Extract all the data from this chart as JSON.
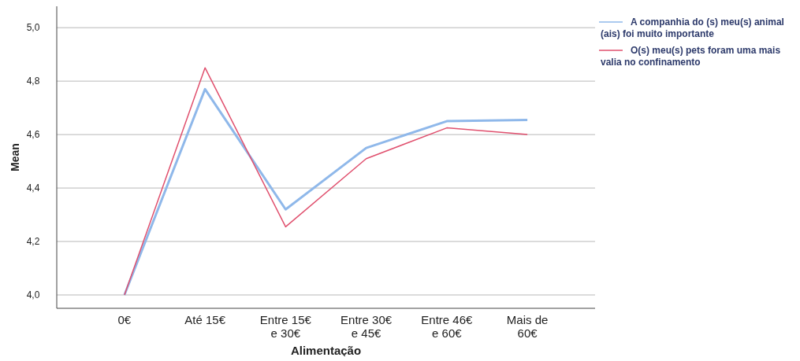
{
  "chart_data": {
    "type": "line",
    "xlabel": "Alimentação",
    "ylabel": "Mean",
    "categories": [
      "0€",
      "Até 15€",
      "Entre 15€ e 30€",
      "Entre 30€ e 45€",
      "Entre 46€ e 60€",
      "Mais de 60€"
    ],
    "series": [
      {
        "name": "A companhia do (s) meu(s) animal (ais) foi muito importante",
        "color": "#8fb8ea",
        "values": [
          4.0,
          4.77,
          4.32,
          4.55,
          4.65,
          4.655
        ]
      },
      {
        "name": "O(s) meu(s) pets foram uma mais valia no confinamento",
        "color": "#e0506e",
        "values": [
          4.0,
          4.85,
          4.255,
          4.51,
          4.625,
          4.6
        ]
      }
    ],
    "ylim": [
      3.95,
      5.08
    ],
    "yticks": [
      {
        "value": 4.0,
        "label": "4,0"
      },
      {
        "value": 4.2,
        "label": "4,2"
      },
      {
        "value": 4.4,
        "label": "4,4"
      },
      {
        "value": 4.6,
        "label": "4,6"
      },
      {
        "value": 4.8,
        "label": "4,8"
      },
      {
        "value": 5.0,
        "label": "5,0"
      }
    ],
    "grid": "y",
    "legend": "right",
    "marker": "none",
    "line_style": "solid"
  }
}
